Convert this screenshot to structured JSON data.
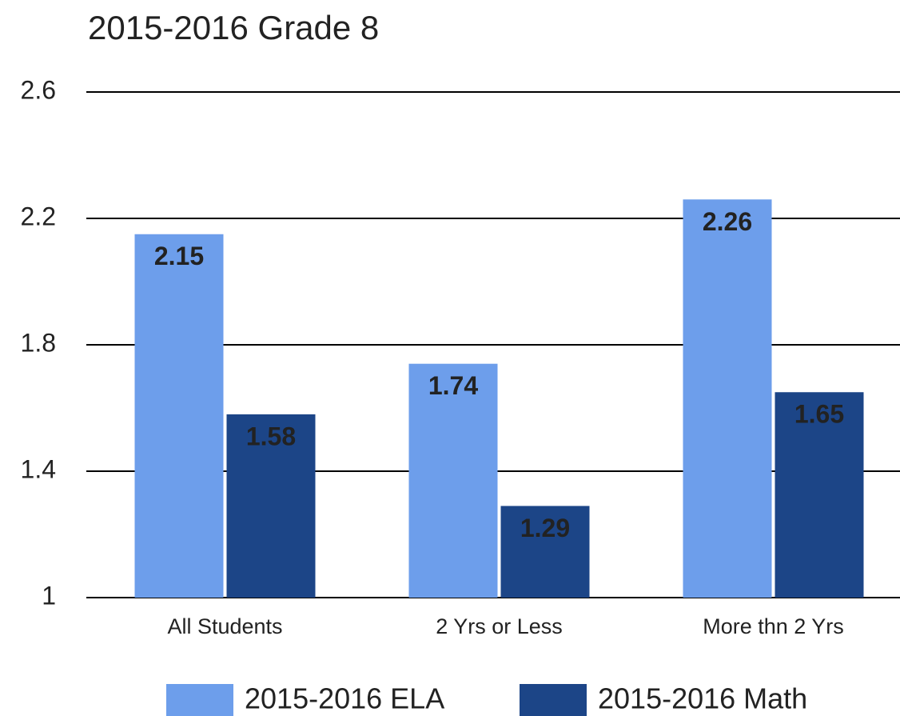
{
  "chart_data": {
    "type": "bar",
    "title": "2015-2016 Grade 8",
    "categories": [
      "All Students",
      "2 Yrs or Less",
      "More thn 2 Yrs"
    ],
    "series": [
      {
        "name": "2015-2016 ELA",
        "color": "#6d9eeb",
        "values": [
          2.15,
          1.74,
          2.26
        ]
      },
      {
        "name": "2015-2016 Math",
        "color": "#1c4587",
        "values": [
          1.58,
          1.29,
          1.65
        ]
      }
    ],
    "ylim": [
      1,
      2.6
    ],
    "yticks": [
      1,
      1.4,
      1.8,
      2.2,
      2.6
    ],
    "grid": true,
    "legend": "bottom"
  }
}
